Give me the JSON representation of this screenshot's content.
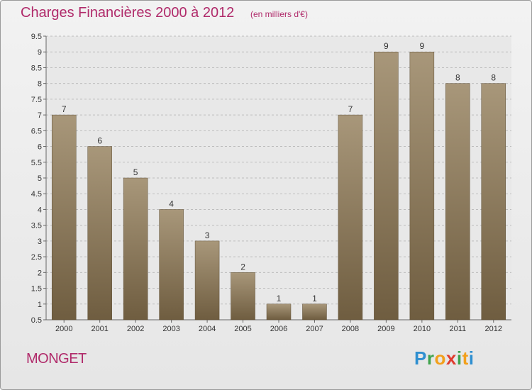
{
  "header": {
    "title": "Charges Financières 2000 à 2012",
    "subtitle": "(en milliers d'€)"
  },
  "footer": {
    "commune": "MONGET",
    "logo_letters": [
      {
        "ch": "P",
        "color": "#2f8fd0"
      },
      {
        "ch": "r",
        "color": "#3fa34d"
      },
      {
        "ch": "o",
        "color": "#f2a01c"
      },
      {
        "ch": "x",
        "color": "#e03c2f"
      },
      {
        "ch": "i",
        "color": "#3fa34d"
      },
      {
        "ch": "t",
        "color": "#f2a01c"
      },
      {
        "ch": "i",
        "color": "#2f8fd0"
      }
    ]
  },
  "chart_data": {
    "type": "bar",
    "categories": [
      "2000",
      "2001",
      "2002",
      "2003",
      "2004",
      "2005",
      "2006",
      "2007",
      "2008",
      "2009",
      "2010",
      "2011",
      "2012"
    ],
    "values": [
      7,
      6,
      5,
      4,
      3,
      2,
      1,
      1,
      7,
      9,
      9,
      8,
      8
    ],
    "data_labels": [
      "7",
      "6",
      "5",
      "4",
      "3",
      "2",
      "1",
      "1",
      "7",
      "9",
      "9",
      "8",
      "8"
    ],
    "ylim": [
      0.5,
      9.5
    ],
    "yticks": [
      "0.5",
      "1",
      "1.5",
      "2",
      "2.5",
      "3",
      "3.5",
      "4",
      "4.5",
      "5",
      "5.5",
      "6",
      "6.5",
      "7",
      "7.5",
      "8",
      "8.5",
      "9",
      "9.5"
    ],
    "xlabel": "",
    "ylabel": "",
    "grid": true,
    "bar_color": "#8c7a5c"
  }
}
